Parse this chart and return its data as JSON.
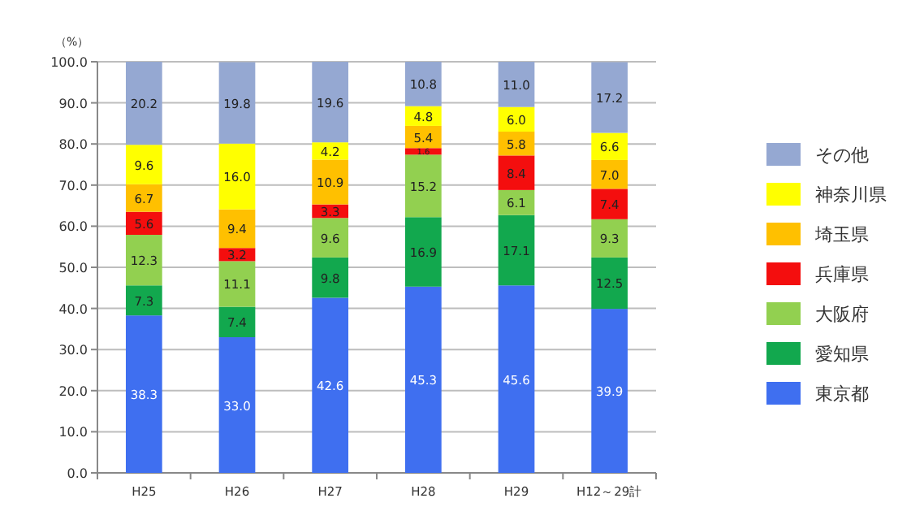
{
  "chart_data": {
    "type": "bar",
    "stacked": true,
    "ylabel": "（%）",
    "categories": [
      "H25",
      "H26",
      "H27",
      "H28",
      "H29",
      "H12～29計"
    ],
    "ylim": [
      0,
      100
    ],
    "yticks": [
      {
        "value": 0,
        "label": "0.0"
      },
      {
        "value": 10,
        "label": "10.0"
      },
      {
        "value": 20,
        "label": "20.0"
      },
      {
        "value": 30,
        "label": "30.0"
      },
      {
        "value": 40,
        "label": "40.0"
      },
      {
        "value": 50,
        "label": "50.0"
      },
      {
        "value": 60,
        "label": "60.0"
      },
      {
        "value": 70,
        "label": "70.0"
      },
      {
        "value": 80,
        "label": "80.0"
      },
      {
        "value": 90,
        "label": "90.0"
      },
      {
        "value": 100,
        "label": "100.0"
      }
    ],
    "grid": "y",
    "legend": "right",
    "series": [
      {
        "name": "東京都",
        "color": "#3f6ff0",
        "values": [
          38.3,
          33.0,
          42.6,
          45.3,
          45.6,
          39.9
        ],
        "value_labels": [
          "38.3",
          "33.0",
          "42.6",
          "45.3",
          "45.6",
          "39.9"
        ]
      },
      {
        "name": "愛知県",
        "color": "#12a84e",
        "values": [
          7.3,
          7.4,
          9.8,
          16.9,
          17.1,
          12.5
        ],
        "value_labels": [
          "7.3",
          "7.4",
          "9.8",
          "16.9",
          "17.1",
          "12.5"
        ]
      },
      {
        "name": "大阪府",
        "color": "#92d050",
        "values": [
          12.3,
          11.1,
          9.6,
          15.2,
          6.1,
          9.3
        ],
        "value_labels": [
          "12.3",
          "11.1",
          "9.6",
          "15.2",
          "6.1",
          "9.3"
        ]
      },
      {
        "name": "兵庫県",
        "color": "#f40e0e",
        "values": [
          5.6,
          3.2,
          3.3,
          1.6,
          8.4,
          7.4
        ],
        "value_labels": [
          "5.6",
          "3.2",
          "3.3",
          "1.6",
          "8.4",
          "7.4"
        ]
      },
      {
        "name": "埼玉県",
        "color": "#ffc000",
        "values": [
          6.7,
          9.4,
          10.9,
          5.4,
          5.8,
          7.0
        ],
        "value_labels": [
          "6.7",
          "9.4",
          "10.9",
          "5.4",
          "5.8",
          "7.0"
        ]
      },
      {
        "name": "神奈川県",
        "color": "#ffff00",
        "values": [
          9.6,
          16.0,
          4.2,
          4.8,
          6.0,
          6.6
        ],
        "value_labels": [
          "9.6",
          "16.0",
          "4.2",
          "4.8",
          "6.0",
          "6.6"
        ]
      },
      {
        "name": "その他",
        "color": "#95a8d2",
        "values": [
          20.2,
          19.8,
          19.6,
          10.8,
          11.0,
          17.2
        ],
        "value_labels": [
          "20.2",
          "19.8",
          "19.6",
          "10.8",
          "11.0",
          "17.2"
        ]
      }
    ]
  }
}
